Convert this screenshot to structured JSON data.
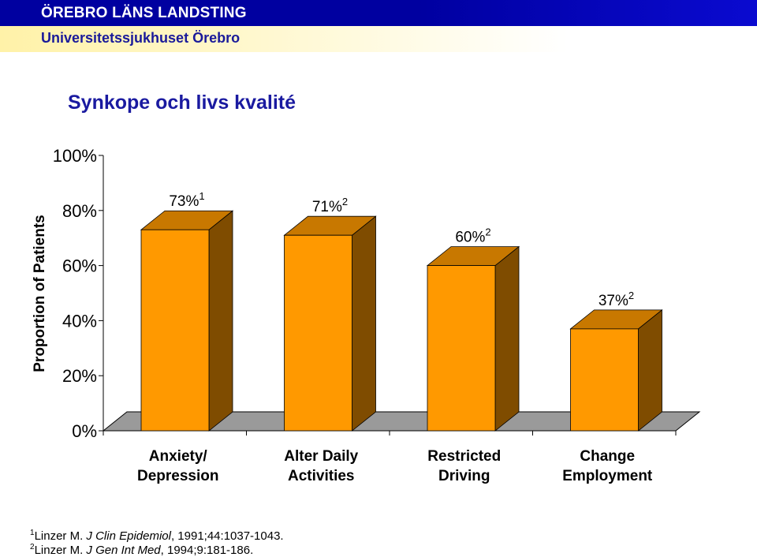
{
  "header": {
    "org_name": "ÖREBRO LÄNS LANDSTING",
    "org_sub": "Universitetssjukhuset Örebro",
    "colors": {
      "bar_top": "#0000a0",
      "bar_bottom": "#fff2a8"
    }
  },
  "title": "Synkope och livs kvalité",
  "chart_data": {
    "type": "bar",
    "style": "3d",
    "ylabel": "Proportion of Patients",
    "ylim": [
      0,
      100
    ],
    "yticks": [
      "0%",
      "20%",
      "40%",
      "60%",
      "80%",
      "100%"
    ],
    "ytick_values": [
      0,
      20,
      40,
      60,
      80,
      100
    ],
    "grid": false,
    "categories": [
      [
        "Anxiety/",
        "Depression"
      ],
      [
        "Alter Daily",
        "Activities"
      ],
      [
        "Restricted",
        "Driving"
      ],
      [
        "Change",
        "Employment"
      ]
    ],
    "values": [
      73,
      71,
      60,
      37
    ],
    "value_labels": [
      "73%",
      "71%",
      "60%",
      "37%"
    ],
    "value_refs": [
      "1",
      "2",
      "2",
      "2"
    ],
    "colors": {
      "front": "#ff9900",
      "top": "#c87800",
      "side": "#7f4c00",
      "floor": "#9a9a9a"
    }
  },
  "footnotes": [
    {
      "ref": "1",
      "author": "Linzer M. ",
      "journal": "J Clin Epidemiol",
      "rest": ", 1991;44:1037-1043."
    },
    {
      "ref": "2",
      "author": "Linzer M. ",
      "journal": "J Gen Int Med",
      "rest": ", 1994;9:181-186."
    }
  ]
}
